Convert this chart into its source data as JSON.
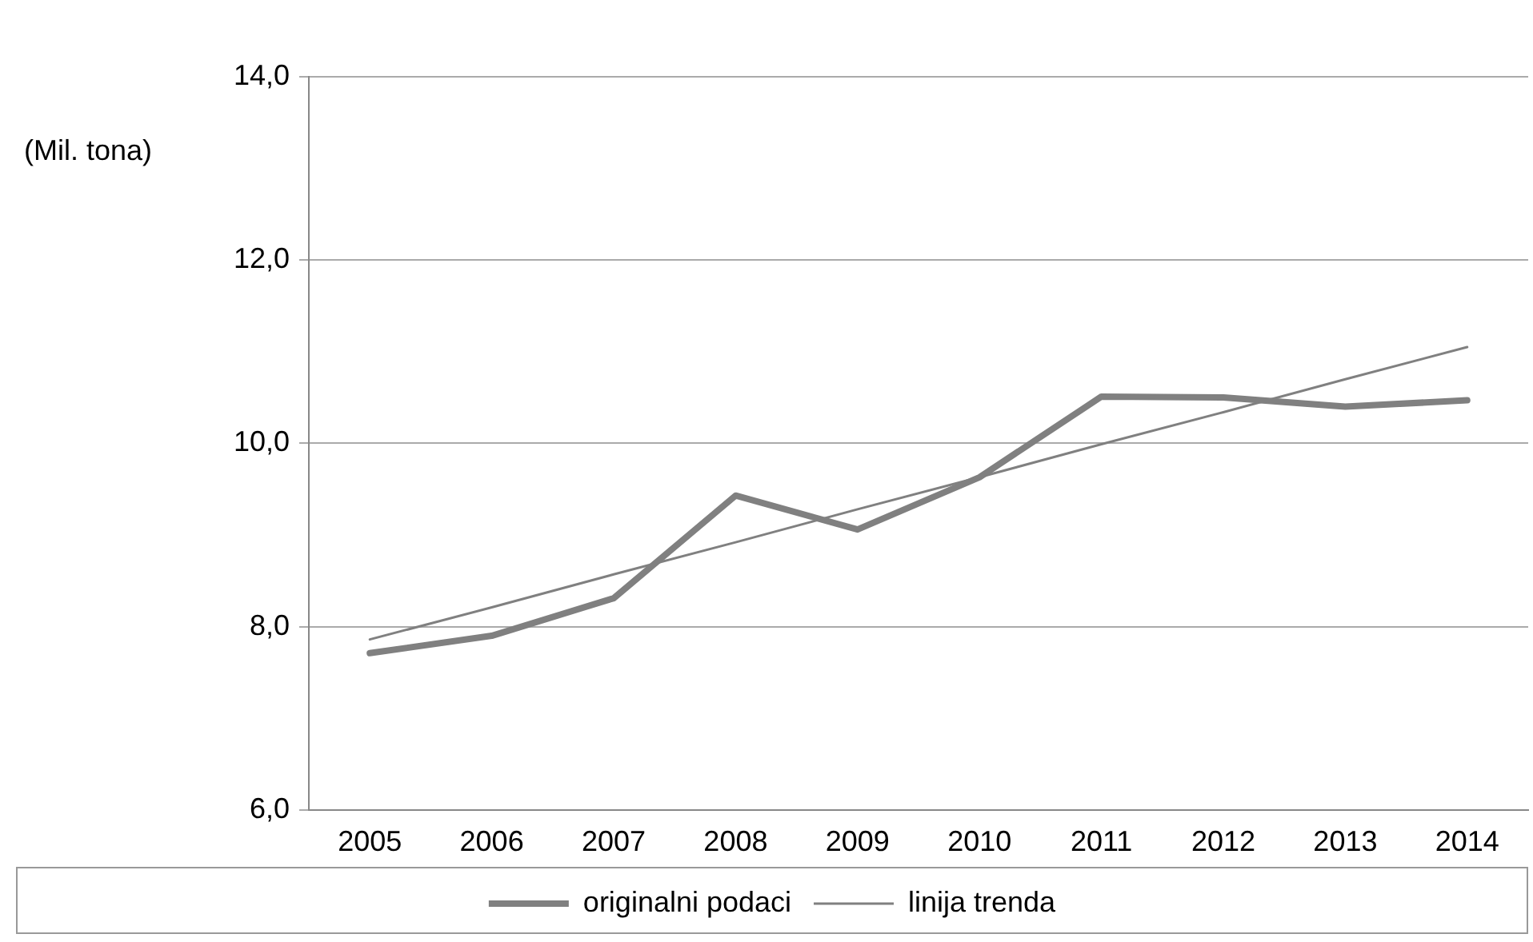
{
  "chart_data": {
    "type": "line",
    "ylabel": "(Mil. tona)",
    "categories": [
      "2005",
      "2006",
      "2007",
      "2008",
      "2009",
      "2010",
      "2011",
      "2012",
      "2013",
      "2014"
    ],
    "series": [
      {
        "name": "originalni podaci",
        "color": "#808080",
        "values": [
          7.71,
          7.9,
          8.31,
          9.43,
          9.06,
          9.63,
          10.51,
          10.5,
          10.4,
          10.47
        ]
      },
      {
        "name": "linija trenda",
        "color": "#808080",
        "values": [
          7.86,
          8.21,
          8.57,
          8.92,
          9.28,
          9.63,
          9.99,
          10.34,
          10.7,
          11.05
        ]
      }
    ],
    "ylim": [
      6,
      14
    ],
    "yticks": [
      {
        "value": 6,
        "label": "6,0"
      },
      {
        "value": 8,
        "label": "8,0"
      },
      {
        "value": 10,
        "label": "10,0"
      },
      {
        "value": 12,
        "label": "12,0"
      },
      {
        "value": 14,
        "label": "14,0"
      }
    ],
    "grid": "y",
    "legend": "bottom",
    "marker": "none",
    "line_style": "solid"
  }
}
